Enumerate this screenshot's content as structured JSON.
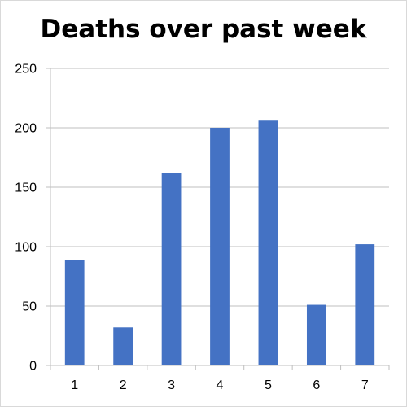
{
  "chart_data": {
    "type": "bar",
    "title": "Deaths over past week",
    "xlabel": "",
    "ylabel": "",
    "categories": [
      "1",
      "2",
      "3",
      "4",
      "5",
      "6",
      "7"
    ],
    "values": [
      89,
      32,
      162,
      200,
      206,
      51,
      102
    ],
    "ylim": [
      0,
      250
    ],
    "yticks": [
      0,
      50,
      100,
      150,
      200,
      250
    ],
    "grid": true,
    "legend": "none",
    "bar_color": "#4472c4",
    "grid_color": "#bfbfbf",
    "axis_color": "#bfbfbf"
  }
}
